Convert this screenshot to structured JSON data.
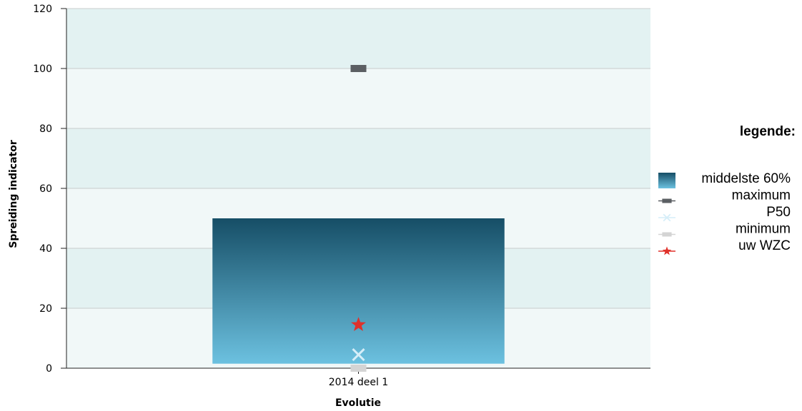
{
  "chart_data": {
    "type": "bar",
    "xlabel": "Evolutie",
    "ylabel": "Spreiding indicator",
    "ylim": [
      0,
      120
    ],
    "yticks": [
      0,
      20,
      40,
      60,
      80,
      100,
      120
    ],
    "categories": [
      "2014 deel 1"
    ],
    "series": [
      {
        "name": "middelste 60%",
        "kind": "range-bar",
        "low": [
          1.5
        ],
        "high": [
          50
        ],
        "color_top": "#164e66",
        "color_bottom": "#6cc1e0"
      },
      {
        "name": "maximum",
        "kind": "marker",
        "symbol": "dash",
        "values": [
          100
        ],
        "color": "#5b5f63"
      },
      {
        "name": "P50",
        "kind": "marker",
        "symbol": "cross",
        "values": [
          4.5
        ],
        "color": "#d6eef8"
      },
      {
        "name": "minimum",
        "kind": "marker",
        "symbol": "dash",
        "values": [
          0
        ],
        "color": "#d4d4d4"
      },
      {
        "name": "uw WZC",
        "kind": "marker",
        "symbol": "star",
        "values": [
          14.5
        ],
        "color": "#e0312a"
      }
    ],
    "legend": {
      "title": "legende:",
      "position": "right"
    },
    "grid": true,
    "band_colors": [
      "#f1f8f8",
      "#e3f2f2"
    ]
  }
}
